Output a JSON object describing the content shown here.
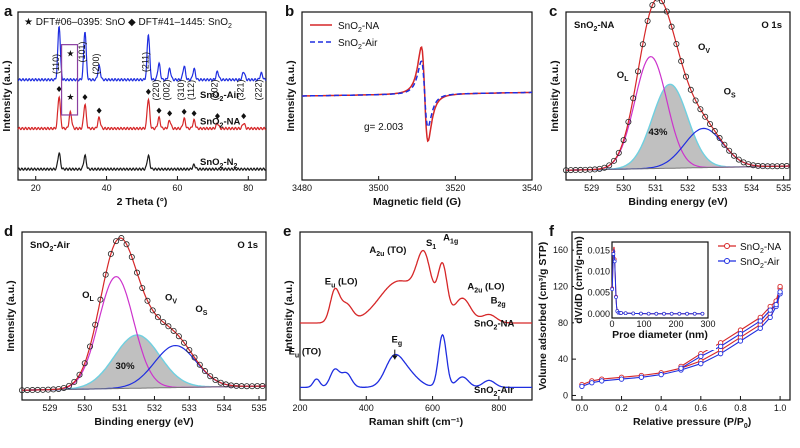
{
  "colors": {
    "black": "#1a1a1a",
    "red": "#d62728",
    "blue": "#1f2ee0",
    "magenta": "#cc33cc",
    "gray": "#9a9a9a",
    "cyan": "#6fd0e0",
    "purple_box": "#8a3fa0"
  },
  "chart_data": [
    {
      "panel": "a",
      "type": "line",
      "xlabel": "2 Theta (°)",
      "ylabel": "Intensity (a.u.)",
      "xlim": [
        15,
        85
      ],
      "xticks": [
        "20",
        "40",
        "60",
        "80"
      ],
      "legend_text": "★ DFT#06–0395: SnO  ◆ DFT#41–1445: SnO",
      "legend_sub": "2",
      "series": [
        {
          "name": "SnO2-Air",
          "label": "SnO",
          "label_sub": "2",
          "label_suffix": "-Air",
          "color": "blue",
          "peaks": [
            [
              26.6,
              1.0
            ],
            [
              33.9,
              0.9
            ],
            [
              37.9,
              0.25
            ],
            [
              51.8,
              0.85
            ],
            [
              54.8,
              0.3
            ],
            [
              57.8,
              0.2
            ],
            [
              61.9,
              0.25
            ],
            [
              64.7,
              0.2
            ],
            [
              71.3,
              0.15
            ],
            [
              78.7,
              0.15
            ],
            [
              83.7,
              0.12
            ]
          ]
        },
        {
          "name": "SnO2-NA",
          "label": "SnO",
          "label_sub": "2",
          "label_suffix": "-NA",
          "color": "red",
          "peaks": [
            [
              26.6,
              0.6
            ],
            [
              29.8,
              0.3
            ],
            [
              33.9,
              0.45
            ],
            [
              37.9,
              0.2
            ],
            [
              51.8,
              0.55
            ],
            [
              54.8,
              0.2
            ],
            [
              57.8,
              0.15
            ],
            [
              61.9,
              0.18
            ],
            [
              64.7,
              0.15
            ],
            [
              71.3,
              0.1
            ],
            [
              78.7,
              0.1
            ]
          ]
        },
        {
          "name": "SnO2-N2",
          "label": "SnO",
          "label_sub": "2",
          "label_suffix": "-N",
          "label_sub2": "2",
          "color": "black",
          "peaks": [
            [
              26.6,
              0.3
            ],
            [
              33.9,
              0.25
            ],
            [
              51.8,
              0.25
            ],
            [
              64.7,
              0.08
            ]
          ]
        }
      ],
      "hkl": [
        [
          "(110)",
          26.6
        ],
        [
          "(101)",
          33.9
        ],
        [
          "(200)",
          37.9
        ],
        [
          "(211)",
          51.8
        ],
        [
          "(220)",
          54.8
        ],
        [
          "(002)",
          57.8
        ],
        [
          "(310)",
          61.9
        ],
        [
          "(112)",
          64.7
        ],
        [
          "(202)",
          71.3
        ],
        [
          "(321)",
          78.7
        ],
        [
          "(222)",
          83.7
        ]
      ],
      "markers_star": [
        29.8
      ],
      "markers_diamond": [
        26.6,
        33.9,
        37.9,
        51.8,
        54.8,
        57.8,
        61.9,
        64.7,
        71.3,
        78.7
      ]
    },
    {
      "panel": "b",
      "type": "line",
      "xlabel": "Magnetic field (G)",
      "ylabel": "Intensity (a.u.)",
      "xlim": [
        3480,
        3540
      ],
      "xticks": [
        "3480",
        "3500",
        "3520",
        "3540"
      ],
      "annotation": "g= 2.003",
      "series": [
        {
          "name": "SnO2-NA",
          "label": "SnO",
          "label_sub": "2",
          "label_suffix": "-NA",
          "color": "red",
          "style": "solid",
          "center": 3512,
          "amplitude": 1.0
        },
        {
          "name": "SnO2-Air",
          "label": "SnO",
          "label_sub": "2",
          "label_suffix": "-Air",
          "color": "blue",
          "style": "dashed",
          "center": 3512,
          "amplitude": 0.7
        }
      ]
    },
    {
      "panel": "c",
      "type": "area",
      "xlabel": "Binding energy (eV)",
      "ylabel": "Intensity (a.u.)",
      "xlim": [
        528.2,
        535.2
      ],
      "xticks": [
        "529",
        "530",
        "531",
        "532",
        "533",
        "534",
        "535"
      ],
      "title_left": "SnO",
      "title_left_sub": "2",
      "title_left_suffix": "-NA",
      "title_right": "O 1s",
      "ov_percent": "43%",
      "components": [
        {
          "name": "OL",
          "base": "O",
          "sub": "L",
          "center": 530.85,
          "height": 0.8,
          "width": 0.5,
          "color": "magenta"
        },
        {
          "name": "OV",
          "base": "O",
          "sub": "V",
          "center": 531.45,
          "height": 0.6,
          "width": 0.55,
          "color": "gray"
        },
        {
          "name": "OS",
          "base": "O",
          "sub": "S",
          "center": 532.5,
          "height": 0.28,
          "width": 0.6,
          "color": "blue"
        }
      ]
    },
    {
      "panel": "d",
      "type": "area",
      "xlabel": "Binding energy (eV)",
      "ylabel": "Intensity (a.u.)",
      "xlim": [
        528.2,
        535.2
      ],
      "xticks": [
        "529",
        "530",
        "531",
        "532",
        "533",
        "534",
        "535"
      ],
      "title_left": "SnO",
      "title_left_sub": "2",
      "title_left_suffix": "-Air",
      "title_right": "O 1s",
      "ov_percent": "30%",
      "components": [
        {
          "name": "OL",
          "base": "O",
          "sub": "L",
          "center": 530.9,
          "height": 0.8,
          "width": 0.5,
          "color": "magenta"
        },
        {
          "name": "OV",
          "base": "O",
          "sub": "V",
          "center": 531.5,
          "height": 0.38,
          "width": 0.65,
          "color": "gray"
        },
        {
          "name": "OS",
          "base": "O",
          "sub": "S",
          "center": 532.6,
          "height": 0.3,
          "width": 0.6,
          "color": "blue"
        }
      ]
    },
    {
      "panel": "e",
      "type": "line",
      "xlabel": "Raman shift (cm⁻¹)",
      "ylabel": "Intensity (a.u.)",
      "xlim": [
        200,
        900
      ],
      "xticks": [
        "200",
        "400",
        "600",
        "800"
      ],
      "series": [
        {
          "name": "SnO2-NA",
          "label": "SnO",
          "label_sub": "2",
          "label_suffix": "-NA",
          "color": "red",
          "bands": [
            [
              305,
              0.45,
              14
            ],
            [
              340,
              0.25,
              18
            ],
            [
              500,
              0.6,
              60
            ],
            [
              575,
              0.75,
              22
            ],
            [
              630,
              0.75,
              14
            ],
            [
              690,
              0.35,
              25
            ],
            [
              770,
              0.12,
              22
            ]
          ]
        },
        {
          "name": "SnO2-Air",
          "label": "SnO",
          "label_sub": "2",
          "label_suffix": "-Air",
          "color": "blue",
          "bands": [
            [
              250,
              0.12,
              10
            ],
            [
              305,
              0.25,
              14
            ],
            [
              340,
              0.2,
              15
            ],
            [
              480,
              0.3,
              25
            ],
            [
              515,
              0.25,
              35
            ],
            [
              630,
              0.75,
              12
            ],
            [
              690,
              0.15,
              18
            ],
            [
              770,
              0.1,
              18
            ]
          ]
        }
      ],
      "labels": [
        {
          "base": "E",
          "sub": "u",
          "suffix": " (LO)",
          "x": 335
        },
        {
          "base": "E",
          "sub": "u",
          "suffix": " (TO)",
          "x": 250
        },
        {
          "base": "E",
          "sub": "g",
          "suffix": "",
          "x": 476
        },
        {
          "base": "A",
          "sub": "2u",
          "suffix": " (TO)",
          "x": 512
        },
        {
          "base": "S",
          "sub": "1",
          "suffix": "",
          "x": 580
        },
        {
          "base": "A",
          "sub": "1g",
          "suffix": "",
          "x": 632
        },
        {
          "base": "A",
          "sub": "2u",
          "suffix": " (LO)",
          "x": 705
        },
        {
          "base": "B",
          "sub": "2g",
          "suffix": "",
          "x": 775
        }
      ]
    },
    {
      "panel": "f",
      "type": "line",
      "xlabel": "Relative pressure (P/P",
      "xlabel_sub": "0",
      "xlabel_suffix": ")",
      "ylabel": "Volume adsorbed (cm³/g STP)",
      "xlim": [
        -0.05,
        1.05
      ],
      "ylim": [
        -5,
        180
      ],
      "xticks": [
        "0.0",
        "0.2",
        "0.4",
        "0.6",
        "0.8",
        "1.0"
      ],
      "yticks": [
        "0",
        "40",
        "80",
        "120",
        "160"
      ],
      "series": [
        {
          "name": "SnO2-NA",
          "label": "SnO",
          "label_sub": "2",
          "label_suffix": "-NA",
          "color": "red",
          "points": [
            [
              0.0,
              12
            ],
            [
              0.05,
              16
            ],
            [
              0.1,
              18
            ],
            [
              0.2,
              20
            ],
            [
              0.3,
              22
            ],
            [
              0.4,
              25
            ],
            [
              0.5,
              30
            ],
            [
              0.6,
              38
            ],
            [
              0.7,
              50
            ],
            [
              0.8,
              64
            ],
            [
              0.9,
              78
            ],
            [
              0.95,
              90
            ],
            [
              0.98,
              102
            ],
            [
              1.0,
              118
            ]
          ]
        },
        {
          "name": "SnO2-Air",
          "label": "SnO",
          "label_sub": "2",
          "label_suffix": "-Air",
          "color": "blue",
          "points": [
            [
              0.0,
              10
            ],
            [
              0.05,
              14
            ],
            [
              0.1,
              16
            ],
            [
              0.2,
              18
            ],
            [
              0.3,
              20
            ],
            [
              0.4,
              23
            ],
            [
              0.5,
              28
            ],
            [
              0.6,
              35
            ],
            [
              0.7,
              46
            ],
            [
              0.8,
              60
            ],
            [
              0.9,
              74
            ],
            [
              0.95,
              86
            ],
            [
              0.98,
              98
            ],
            [
              1.0,
              112
            ]
          ]
        }
      ],
      "inset": {
        "xlabel": "Proe diameter (nm)",
        "ylabel": "dV/dD (cm³/g-nm)",
        "xlim": [
          0,
          300
        ],
        "ylim": [
          -0.001,
          0.017
        ],
        "xticks": [
          "0",
          "100",
          "200",
          "300"
        ],
        "yticks": [
          "0.000",
          "0.005",
          "0.010",
          "0.015"
        ],
        "peak_x": 6,
        "peak_y": 0.0155
      }
    }
  ]
}
